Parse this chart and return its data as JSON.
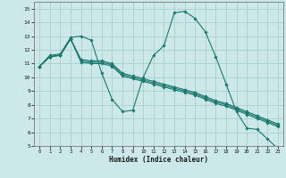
{
  "xlabel": "Humidex (Indice chaleur)",
  "bg_color": "#cce8e8",
  "grid_color": "#aad0d0",
  "line_color": "#1a7a6e",
  "xlim": [
    -0.5,
    23.5
  ],
  "ylim": [
    5,
    15.5
  ],
  "xticks": [
    0,
    1,
    2,
    3,
    4,
    5,
    6,
    7,
    8,
    9,
    10,
    11,
    12,
    13,
    14,
    15,
    16,
    17,
    18,
    19,
    20,
    21,
    22,
    23
  ],
  "yticks": [
    5,
    6,
    7,
    8,
    9,
    10,
    11,
    12,
    13,
    14,
    15
  ],
  "series": [
    {
      "x": [
        0,
        1,
        2,
        3,
        4,
        5,
        6,
        7,
        8,
        9,
        10,
        11,
        12,
        13,
        14,
        15,
        16,
        17,
        18,
        19,
        20,
        21,
        22,
        23
      ],
      "y": [
        10.8,
        11.6,
        11.7,
        12.9,
        13.0,
        12.7,
        10.3,
        8.4,
        7.5,
        7.6,
        10.0,
        11.6,
        12.3,
        14.7,
        14.8,
        14.3,
        13.3,
        11.5,
        9.5,
        7.5,
        6.3,
        6.2,
        5.5,
        4.8
      ]
    },
    {
      "x": [
        0,
        1,
        2,
        3,
        4,
        5,
        6,
        7,
        8,
        9,
        10,
        11,
        12,
        13,
        14,
        15,
        16,
        17,
        18,
        19,
        20,
        21,
        22,
        23
      ],
      "y": [
        10.8,
        11.5,
        11.6,
        12.8,
        11.1,
        11.0,
        11.0,
        10.8,
        10.1,
        9.9,
        9.7,
        9.5,
        9.3,
        9.1,
        8.9,
        8.7,
        8.4,
        8.1,
        7.9,
        7.6,
        7.3,
        7.0,
        6.7,
        6.4
      ]
    },
    {
      "x": [
        0,
        1,
        2,
        3,
        4,
        5,
        6,
        7,
        8,
        9,
        10,
        11,
        12,
        13,
        14,
        15,
        16,
        17,
        18,
        19,
        20,
        21,
        22,
        23
      ],
      "y": [
        10.8,
        11.5,
        11.6,
        12.8,
        11.2,
        11.1,
        11.1,
        10.9,
        10.2,
        10.0,
        9.8,
        9.6,
        9.4,
        9.2,
        9.0,
        8.8,
        8.5,
        8.2,
        8.0,
        7.7,
        7.4,
        7.1,
        6.8,
        6.5
      ]
    },
    {
      "x": [
        0,
        1,
        2,
        3,
        4,
        5,
        6,
        7,
        8,
        9,
        10,
        11,
        12,
        13,
        14,
        15,
        16,
        17,
        18,
        19,
        20,
        21,
        22,
        23
      ],
      "y": [
        10.8,
        11.5,
        11.6,
        12.8,
        11.3,
        11.2,
        11.2,
        11.0,
        10.3,
        10.1,
        9.9,
        9.7,
        9.5,
        9.3,
        9.1,
        8.9,
        8.6,
        8.3,
        8.1,
        7.8,
        7.5,
        7.2,
        6.9,
        6.6
      ]
    }
  ]
}
